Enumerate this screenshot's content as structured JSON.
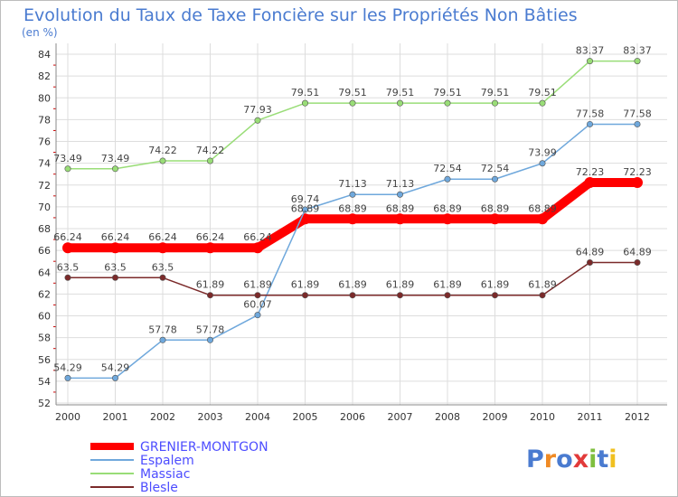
{
  "chart_data": {
    "type": "line",
    "title": "Evolution du Taux de Taxe Foncière sur les Propriétés Non Bâties",
    "subtitle": "(en %)",
    "x": [
      "2000",
      "2001",
      "2002",
      "2003",
      "2004",
      "2005",
      "2006",
      "2007",
      "2008",
      "2009",
      "2010",
      "2011",
      "2012"
    ],
    "ylim": [
      52,
      84
    ],
    "yticks": [
      52,
      54,
      56,
      58,
      60,
      62,
      64,
      66,
      68,
      70,
      72,
      74,
      76,
      78,
      80,
      82,
      84
    ],
    "grid": true,
    "legend_position": "bottom-left",
    "series": [
      {
        "name": "GRENIER-MONTGON",
        "color": "#ff0000",
        "values": [
          66.24,
          66.24,
          66.24,
          66.24,
          66.24,
          68.89,
          68.89,
          68.89,
          68.89,
          68.89,
          68.89,
          72.23,
          72.23
        ],
        "labels": [
          "66.24",
          "66.24",
          "66.24",
          "66.24",
          "66.24",
          "68.89",
          "68.89",
          "68.89",
          "68.89",
          "68.89",
          "68.89",
          "72.23",
          "72.23"
        ]
      },
      {
        "name": "Espalem",
        "color": "#6fa8dc",
        "values": [
          54.29,
          54.29,
          57.78,
          57.78,
          60.07,
          69.74,
          71.13,
          71.13,
          72.54,
          72.54,
          73.99,
          77.58,
          77.58
        ],
        "labels": [
          "54.29",
          "54.29",
          "57.78",
          "57.78",
          "60.07",
          "69.74",
          "71.13",
          "71.13",
          "72.54",
          "72.54",
          "73.99",
          "77.58",
          "77.58"
        ]
      },
      {
        "name": "Massiac",
        "color": "#99dd77",
        "values": [
          73.49,
          73.49,
          74.22,
          74.22,
          77.93,
          79.51,
          79.51,
          79.51,
          79.51,
          79.51,
          79.51,
          83.37,
          83.37
        ],
        "labels": [
          "73.49",
          "73.49",
          "74.22",
          "74.22",
          "77.93",
          "79.51",
          "79.51",
          "79.51",
          "79.51",
          "79.51",
          "79.51",
          "83.37",
          "83.37"
        ]
      },
      {
        "name": "Blesle",
        "color": "#7b2a2a",
        "values": [
          63.5,
          63.5,
          63.5,
          61.89,
          61.89,
          61.89,
          61.89,
          61.89,
          61.89,
          61.89,
          61.89,
          64.89,
          64.89
        ],
        "labels": [
          "63.5",
          "63.5",
          "63.5",
          "61.89",
          "61.89",
          "61.89",
          "61.89",
          "61.89",
          "61.89",
          "61.89",
          "61.89",
          "64.89",
          "64.89"
        ]
      }
    ]
  },
  "branding": {
    "logo_text": "Proxiti"
  },
  "colors": {
    "title": "#4a7bd0",
    "legend_text": "#4d4dff",
    "axis_text": "#333333",
    "grid": "#dddddd",
    "tick_red": "#cc0000"
  }
}
